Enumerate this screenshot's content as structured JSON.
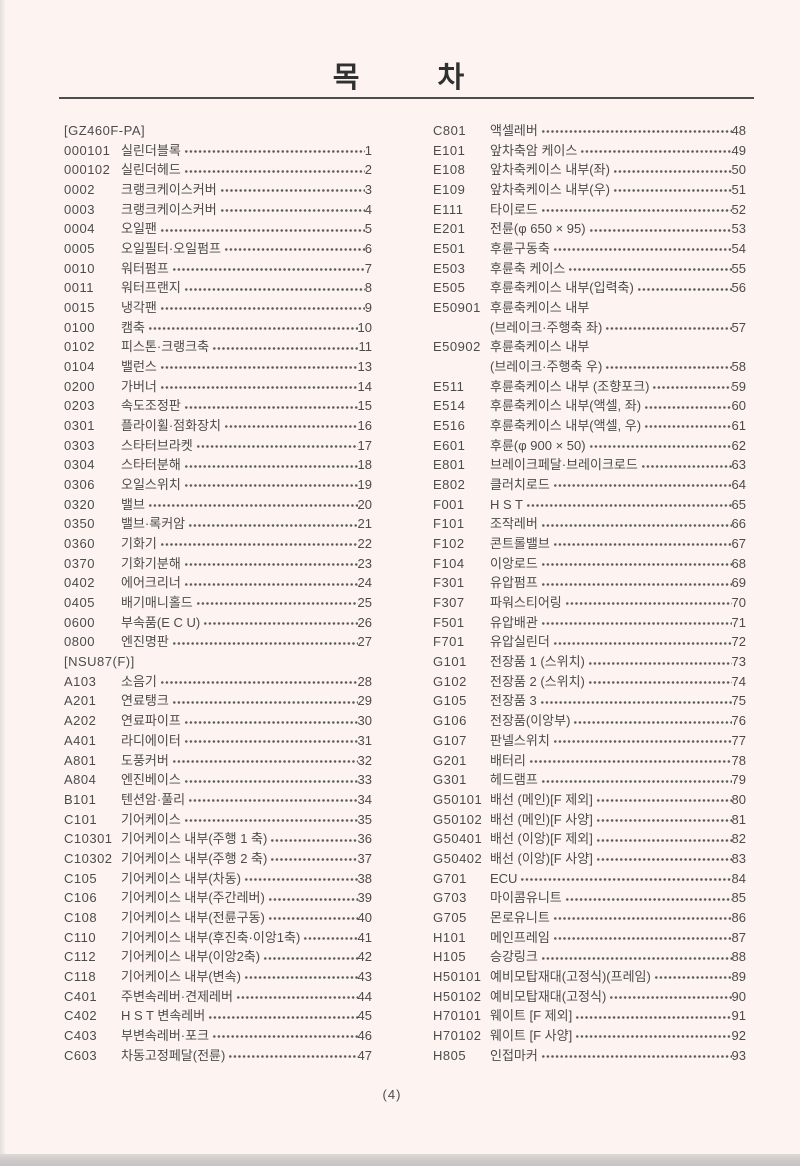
{
  "title": "목 차",
  "footer_page": "(4)",
  "columns": {
    "left": [
      {
        "header": "[GZ460F-PA]"
      },
      {
        "code": "000101",
        "label": "실린더블록",
        "page": "1"
      },
      {
        "code": "000102",
        "label": "실린더헤드",
        "page": "2"
      },
      {
        "code": "0002",
        "label": "크랭크케이스커버",
        "page": "3"
      },
      {
        "code": "0003",
        "label": "크랭크케이스커버",
        "page": "4"
      },
      {
        "code": "0004",
        "label": "오일팬",
        "page": "5"
      },
      {
        "code": "0005",
        "label": "오일필터·오일펌프",
        "page": "6"
      },
      {
        "code": "0010",
        "label": "워터펌프",
        "page": "7"
      },
      {
        "code": "0011",
        "label": "워터프랜지",
        "page": "8"
      },
      {
        "code": "0015",
        "label": "냉각팬",
        "page": "9"
      },
      {
        "code": "0100",
        "label": "캠축",
        "page": "10"
      },
      {
        "code": "0102",
        "label": "피스톤·크랭크축",
        "page": "11"
      },
      {
        "code": "0104",
        "label": "밸런스",
        "page": "13"
      },
      {
        "code": "0200",
        "label": "가버너",
        "page": "14"
      },
      {
        "code": "0203",
        "label": "속도조정판",
        "page": "15"
      },
      {
        "code": "0301",
        "label": "플라이휠·점화장치",
        "page": "16"
      },
      {
        "code": "0303",
        "label": "스타터브라켓",
        "page": "17"
      },
      {
        "code": "0304",
        "label": "스타터분해",
        "page": "18"
      },
      {
        "code": "0306",
        "label": "오일스위치",
        "page": "19"
      },
      {
        "code": "0320",
        "label": "밸브",
        "page": "20"
      },
      {
        "code": "0350",
        "label": "밸브·록커암",
        "page": "21"
      },
      {
        "code": "0360",
        "label": "기화기",
        "page": "22"
      },
      {
        "code": "0370",
        "label": "기화기분해",
        "page": "23"
      },
      {
        "code": "0402",
        "label": "에어크리너",
        "page": "24"
      },
      {
        "code": "0405",
        "label": "배기매니홀드",
        "page": "25"
      },
      {
        "code": "0600",
        "label": "부속품(E C U)",
        "page": "26"
      },
      {
        "code": "0800",
        "label": "엔진명판",
        "page": "27"
      },
      {
        "header": "[NSU87(F)]"
      },
      {
        "code": "A103",
        "label": "소음기",
        "page": "28"
      },
      {
        "code": "A201",
        "label": "연료탱크",
        "page": "29"
      },
      {
        "code": "A202",
        "label": "연료파이프",
        "page": "30"
      },
      {
        "code": "A401",
        "label": "라디에이터",
        "page": "31"
      },
      {
        "code": "A801",
        "label": "도풍커버",
        "page": "32"
      },
      {
        "code": "A804",
        "label": "엔진베이스",
        "page": "33"
      },
      {
        "code": "B101",
        "label": "텐션암·풀리",
        "page": "34"
      },
      {
        "code": "C101",
        "label": "기어케이스",
        "page": "35"
      },
      {
        "code": "C10301",
        "label": "기어케이스 내부(주행 1 축)",
        "page": "36"
      },
      {
        "code": "C10302",
        "label": "기어케이스 내부(주행 2 축)",
        "page": "37"
      },
      {
        "code": "C105",
        "label": "기어케이스 내부(차동)",
        "page": "38"
      },
      {
        "code": "C106",
        "label": "기어케이스 내부(주간레버)",
        "page": "39"
      },
      {
        "code": "C108",
        "label": "기어케이스 내부(전륜구동)",
        "page": "40"
      },
      {
        "code": "C110",
        "label": "기어케이스 내부(후진축·이앙1축)",
        "page": "41"
      },
      {
        "code": "C112",
        "label": "기어케이스 내부(이앙2축)",
        "page": "42"
      },
      {
        "code": "C118",
        "label": "기어케이스 내부(변속)",
        "page": "43"
      },
      {
        "code": "C401",
        "label": "주변속레버·견제레버",
        "page": "44"
      },
      {
        "code": "C402",
        "label": "H S T 변속레버",
        "page": "45"
      },
      {
        "code": "C403",
        "label": "부변속레버·포크",
        "page": "46"
      },
      {
        "code": "C603",
        "label": "차동고정페달(전륜)",
        "page": "47"
      }
    ],
    "right": [
      {
        "code": "C801",
        "label": "액셀레버",
        "page": "48"
      },
      {
        "code": "E101",
        "label": "앞차축암 케이스",
        "page": "49"
      },
      {
        "code": "E108",
        "label": "앞차축케이스 내부(좌)",
        "page": "50"
      },
      {
        "code": "E109",
        "label": "앞차축케이스 내부(우)",
        "page": "51"
      },
      {
        "code": "E111",
        "label": "타이로드",
        "page": "52"
      },
      {
        "code": "E201",
        "label": "전륜(φ 650 × 95)",
        "page": "53"
      },
      {
        "code": "E501",
        "label": "후륜구동축",
        "page": "54"
      },
      {
        "code": "E503",
        "label": "후륜축 케이스",
        "page": "55"
      },
      {
        "code": "E505",
        "label": "후륜축케이스 내부(입력축)",
        "page": "56"
      },
      {
        "code": "E50901",
        "label": "후륜축케이스 내부",
        "page": ""
      },
      {
        "code": "",
        "label": "(브레이크·주행축 좌)",
        "page": "57"
      },
      {
        "code": "E50902",
        "label": "후륜축케이스 내부",
        "page": ""
      },
      {
        "code": "",
        "label": "(브레이크·주행축 우)",
        "page": "58"
      },
      {
        "code": "E511",
        "label": "후륜축케이스 내부 (조향포크)",
        "page": "59"
      },
      {
        "code": "E514",
        "label": "후륜축케이스 내부(액셀, 좌)",
        "page": "60"
      },
      {
        "code": "E516",
        "label": "후륜축케이스 내부(액셀, 우)",
        "page": "61"
      },
      {
        "code": "E601",
        "label": "후륜(φ 900 × 50)",
        "page": "62"
      },
      {
        "code": "E801",
        "label": "브레이크페달·브레이크로드",
        "page": "63"
      },
      {
        "code": "E802",
        "label": "클러치로드",
        "page": "64"
      },
      {
        "code": "F001",
        "label": "H S T",
        "page": "65"
      },
      {
        "code": "F101",
        "label": "조작레버",
        "page": "66"
      },
      {
        "code": "F102",
        "label": "콘트롤밸브",
        "page": "67"
      },
      {
        "code": "F104",
        "label": "이앙로드",
        "page": "68"
      },
      {
        "code": "F301",
        "label": "유압펌프",
        "page": "69"
      },
      {
        "code": "F307",
        "label": "파워스티어링",
        "page": "70"
      },
      {
        "code": "F501",
        "label": "유압배관",
        "page": "71"
      },
      {
        "code": "F701",
        "label": "유압실린더",
        "page": "72"
      },
      {
        "code": "G101",
        "label": "전장품 1 (스위치)",
        "page": "73"
      },
      {
        "code": "G102",
        "label": "전장품 2 (스위치)",
        "page": "74"
      },
      {
        "code": "G105",
        "label": "전장품 3",
        "page": "75"
      },
      {
        "code": "G106",
        "label": "전장품(이앙부)",
        "page": "76"
      },
      {
        "code": "G107",
        "label": "판넬스위치",
        "page": "77"
      },
      {
        "code": "G201",
        "label": "배터리",
        "page": "78"
      },
      {
        "code": "G301",
        "label": "헤드램프",
        "page": "79"
      },
      {
        "code": "G50101",
        "label": "배선 (메인)[F 제외]",
        "page": "80"
      },
      {
        "code": "G50102",
        "label": "배선 (메인)[F 사양]",
        "page": "81"
      },
      {
        "code": "G50401",
        "label": "배선 (이앙)[F 제외]",
        "page": "82"
      },
      {
        "code": "G50402",
        "label": "배선 (이앙)[F 사양]",
        "page": "83"
      },
      {
        "code": "G701",
        "label": "ECU",
        "page": "84"
      },
      {
        "code": "G703",
        "label": "마이콤유니트",
        "page": "85"
      },
      {
        "code": "G705",
        "label": "몬로유니트",
        "page": "86"
      },
      {
        "code": "H101",
        "label": "메인프레임",
        "page": "87"
      },
      {
        "code": "H105",
        "label": "승강링크",
        "page": "88"
      },
      {
        "code": "H50101",
        "label": "예비모탑재대(고정식)(프레임)",
        "page": "89"
      },
      {
        "code": "H50102",
        "label": "예비모탑재대(고정식)",
        "page": "90"
      },
      {
        "code": "H70101",
        "label": "웨이트 [F 제외]",
        "page": "91"
      },
      {
        "code": "H70102",
        "label": "웨이트 [F 사양]",
        "page": "92"
      },
      {
        "code": "H805",
        "label": "인접마커",
        "page": "93"
      }
    ]
  }
}
